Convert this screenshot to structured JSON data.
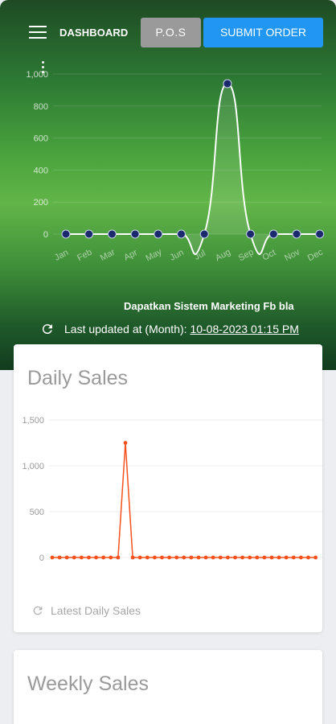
{
  "header": {
    "title": "DASHBOARD",
    "pos_button": "P.O.S",
    "submit_button": "SUBMIT ORDER"
  },
  "monthly": {
    "marquee_text": "Dapatkan Sistem Marketing Fb bla",
    "updated_label": "Last updated at (Month):",
    "updated_date": "10-08-2023 01:15 PM",
    "line_color": "#ffffff",
    "point_color": "#1a2a6c"
  },
  "daily": {
    "title": "Daily Sales",
    "footer": "Latest Daily Sales",
    "line_color": "#f4511e"
  },
  "weekly": {
    "title": "Weekly Sales"
  },
  "chart_data": [
    {
      "type": "line",
      "x": [
        "Jan",
        "Feb",
        "Mar",
        "Apr",
        "May",
        "Jun",
        "Jul",
        "Aug",
        "Sep",
        "Oct",
        "Nov",
        "Dec"
      ],
      "values": [
        0,
        0,
        0,
        0,
        0,
        0,
        0,
        940,
        0,
        0,
        0,
        0
      ],
      "ylim": [
        0,
        1000
      ],
      "yticks": [
        0,
        200,
        400,
        600,
        800,
        1000
      ],
      "grid": true
    },
    {
      "type": "line",
      "values": [
        0,
        0,
        0,
        0,
        0,
        0,
        0,
        0,
        0,
        0,
        1250,
        0,
        0,
        0,
        0,
        0,
        0,
        0,
        0,
        0,
        0,
        0,
        0,
        0,
        0,
        0,
        0,
        0,
        0,
        0,
        0,
        0,
        0,
        0,
        0,
        0,
        0
      ],
      "ylim": [
        0,
        1500
      ],
      "yticks": [
        0,
        500,
        1000,
        1500
      ],
      "grid": true
    }
  ]
}
